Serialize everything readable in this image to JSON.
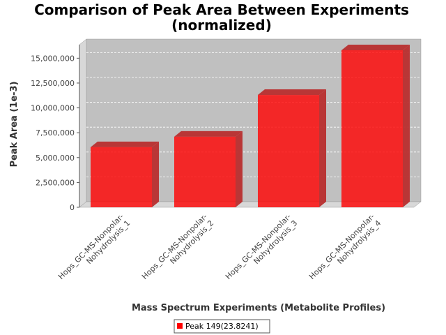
{
  "chart_data": {
    "type": "bar",
    "title": [
      "Comparison of Peak Area Between Experiments",
      "(normalized)"
    ],
    "xlabel": "Mass Spectrum Experiments (Metabolite Profiles)",
    "ylabel": "Peak Area (1e-3)",
    "categories": [
      [
        "Hops_GC-MS-Nonpolar-",
        "Nohydrolysis_1"
      ],
      [
        "Hops_GC-MS-Nonpolar-",
        "Nohydrolysis_2"
      ],
      [
        "Hops_GC-MS-Nonpolar-",
        "Nohydrolysis_3"
      ],
      [
        "Hops_GC-MS-Nonpolar-",
        "Nohydrolysis_4"
      ]
    ],
    "series": [
      {
        "name": "Peak 149(23.8241)",
        "color": "#ff0000",
        "values": [
          6050000,
          7100000,
          11300000,
          15800000
        ]
      }
    ],
    "ylim": [
      0,
      16500000
    ],
    "yticks": [
      0,
      2500000,
      5000000,
      7500000,
      10000000,
      12500000,
      15000000
    ],
    "ytick_labels": [
      "0",
      "2,500,000",
      "5,000,000",
      "7,500,000",
      "10,000,000",
      "12,500,000",
      "15,000,000"
    ],
    "grid": true,
    "legend_position": "bottom-center",
    "plot_background": "#c0c0c0"
  }
}
